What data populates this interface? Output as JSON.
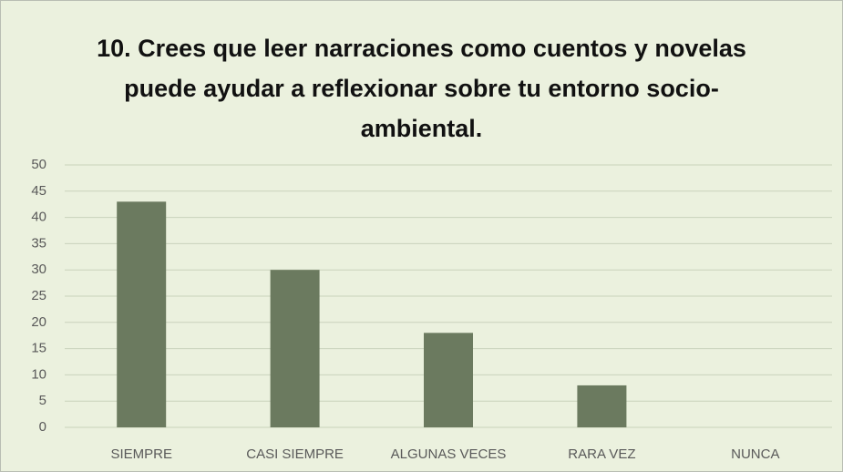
{
  "chart_data": {
    "type": "bar",
    "title": "10.  Crees que leer narraciones como cuentos y novelas puede ayudar a reflexionar sobre tu entorno socio-ambiental.",
    "categories": [
      "SIEMPRE",
      "CASI SIEMPRE",
      "ALGUNAS VECES",
      "RARA VEZ",
      "NUNCA"
    ],
    "values": [
      43,
      30,
      18,
      8,
      0
    ],
    "color": "#6b7a5f",
    "ylim": [
      0,
      50
    ],
    "yticks": [
      0,
      5,
      10,
      15,
      20,
      25,
      30,
      35,
      40,
      45,
      50
    ],
    "grid": true
  }
}
